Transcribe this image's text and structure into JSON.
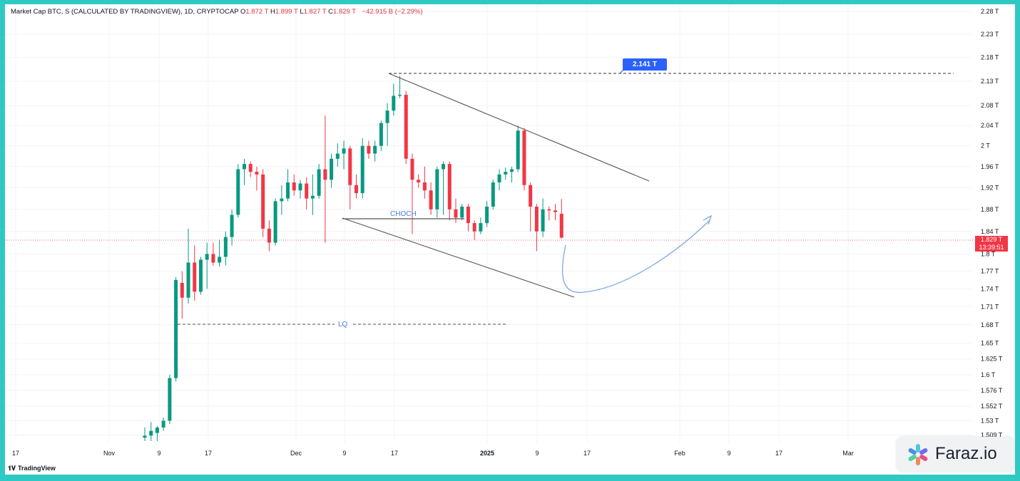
{
  "header": {
    "title": "Market Cap BTC, S (CALCULATED BY TRADINGVIEW), 1D, CRYPTOCAP",
    "o_label": "O",
    "o_value": "1.872 T",
    "h_label": "H",
    "h_value": "1.899 T",
    "l_label": "L",
    "l_value": "1.827 T",
    "c_label": "C",
    "c_value": "1.829 T",
    "change": "−42.915 B (−2.29%)"
  },
  "current_price": {
    "value": "1.829 T",
    "countdown": "13:39:51"
  },
  "target_label": "2.141 T",
  "annotations": {
    "choch": "CHOCH",
    "lq": "LQ"
  },
  "branding": {
    "tradingview": "TradingView",
    "watermark": "Faraz.io"
  },
  "colors": {
    "up": "#089981",
    "down": "#f23645",
    "annotation": "#4b7bd4",
    "arrow": "#7ea8e6"
  },
  "chart_data": {
    "type": "candlestick",
    "y_scale": "log",
    "ylim": [
      1.5,
      2.28
    ],
    "y_tick_labels": [
      "2.28 T",
      "2.23 T",
      "2.18 T",
      "2.13 T",
      "2.08 T",
      "2.04 T",
      "2 T",
      "1.96 T",
      "1.92 T",
      "1.88 T",
      "1.84 T",
      "1.8 T",
      "1.77 T",
      "1.74 T",
      "1.71 T",
      "1.68 T",
      "1.65 T",
      "1.625 T",
      "1.6 T",
      "1.576 T",
      "1.552 T",
      "1.53 T",
      "1.509 T"
    ],
    "x_tick_labels": [
      "17",
      "Nov",
      "9",
      "17",
      "Dec",
      "9",
      "17",
      "2025",
      "9",
      "17",
      "Feb",
      "9",
      "17",
      "Mar"
    ],
    "candles": [
      {
        "o": 1.505,
        "h": 1.52,
        "l": 1.5,
        "c": 1.508
      },
      {
        "o": 1.508,
        "h": 1.528,
        "l": 1.5,
        "c": 1.515
      },
      {
        "o": 1.512,
        "h": 1.522,
        "l": 1.5,
        "c": 1.52
      },
      {
        "o": 1.52,
        "h": 1.535,
        "l": 1.515,
        "c": 1.53
      },
      {
        "o": 1.53,
        "h": 1.6,
        "l": 1.525,
        "c": 1.595
      },
      {
        "o": 1.595,
        "h": 1.76,
        "l": 1.59,
        "c": 1.755
      },
      {
        "o": 1.75,
        "h": 1.77,
        "l": 1.69,
        "c": 1.725
      },
      {
        "o": 1.725,
        "h": 1.845,
        "l": 1.715,
        "c": 1.785
      },
      {
        "o": 1.785,
        "h": 1.815,
        "l": 1.72,
        "c": 1.735
      },
      {
        "o": 1.735,
        "h": 1.795,
        "l": 1.73,
        "c": 1.79
      },
      {
        "o": 1.79,
        "h": 1.82,
        "l": 1.74,
        "c": 1.8
      },
      {
        "o": 1.8,
        "h": 1.82,
        "l": 1.78,
        "c": 1.785
      },
      {
        "o": 1.785,
        "h": 1.825,
        "l": 1.778,
        "c": 1.795
      },
      {
        "o": 1.795,
        "h": 1.84,
        "l": 1.78,
        "c": 1.83
      },
      {
        "o": 1.83,
        "h": 1.88,
        "l": 1.815,
        "c": 1.87
      },
      {
        "o": 1.87,
        "h": 1.965,
        "l": 1.865,
        "c": 1.955
      },
      {
        "o": 1.955,
        "h": 1.975,
        "l": 1.925,
        "c": 1.965
      },
      {
        "o": 1.965,
        "h": 1.97,
        "l": 1.94,
        "c": 1.95
      },
      {
        "o": 1.95,
        "h": 1.96,
        "l": 1.915,
        "c": 1.945
      },
      {
        "o": 1.945,
        "h": 1.955,
        "l": 1.83,
        "c": 1.845
      },
      {
        "o": 1.845,
        "h": 1.86,
        "l": 1.805,
        "c": 1.82
      },
      {
        "o": 1.82,
        "h": 1.9,
        "l": 1.815,
        "c": 1.895
      },
      {
        "o": 1.895,
        "h": 1.925,
        "l": 1.87,
        "c": 1.9
      },
      {
        "o": 1.9,
        "h": 1.955,
        "l": 1.895,
        "c": 1.93
      },
      {
        "o": 1.93,
        "h": 1.945,
        "l": 1.905,
        "c": 1.915
      },
      {
        "o": 1.915,
        "h": 1.935,
        "l": 1.9,
        "c": 1.928
      },
      {
        "o": 1.928,
        "h": 1.94,
        "l": 1.88,
        "c": 1.9
      },
      {
        "o": 1.9,
        "h": 1.945,
        "l": 1.87,
        "c": 1.905
      },
      {
        "o": 1.905,
        "h": 1.965,
        "l": 1.9,
        "c": 1.955
      },
      {
        "o": 1.955,
        "h": 2.06,
        "l": 1.82,
        "c": 1.935
      },
      {
        "o": 1.935,
        "h": 1.985,
        "l": 1.92,
        "c": 1.975
      },
      {
        "o": 1.975,
        "h": 2.005,
        "l": 1.96,
        "c": 1.985
      },
      {
        "o": 1.985,
        "h": 2.01,
        "l": 1.955,
        "c": 1.995
      },
      {
        "o": 1.995,
        "h": 2.0,
        "l": 1.88,
        "c": 1.925
      },
      {
        "o": 1.925,
        "h": 1.945,
        "l": 1.9,
        "c": 1.91
      },
      {
        "o": 1.91,
        "h": 2.015,
        "l": 1.9,
        "c": 2.0
      },
      {
        "o": 2.0,
        "h": 2.01,
        "l": 1.975,
        "c": 1.985
      },
      {
        "o": 1.985,
        "h": 2.01,
        "l": 1.97,
        "c": 2.0
      },
      {
        "o": 2.0,
        "h": 2.05,
        "l": 1.99,
        "c": 2.045
      },
      {
        "o": 2.045,
        "h": 2.085,
        "l": 2.0,
        "c": 2.07
      },
      {
        "o": 2.07,
        "h": 2.125,
        "l": 2.06,
        "c": 2.1
      },
      {
        "o": 2.1,
        "h": 2.141,
        "l": 2.095,
        "c": 2.102
      },
      {
        "o": 2.102,
        "h": 2.11,
        "l": 1.965,
        "c": 1.975
      },
      {
        "o": 1.975,
        "h": 1.985,
        "l": 1.835,
        "c": 1.935
      },
      {
        "o": 1.935,
        "h": 1.945,
        "l": 1.92,
        "c": 1.93
      },
      {
        "o": 1.93,
        "h": 1.96,
        "l": 1.9,
        "c": 1.915
      },
      {
        "o": 1.915,
        "h": 1.93,
        "l": 1.87,
        "c": 1.88
      },
      {
        "o": 1.88,
        "h": 1.96,
        "l": 1.865,
        "c": 1.955
      },
      {
        "o": 1.955,
        "h": 1.97,
        "l": 1.87,
        "c": 1.965
      },
      {
        "o": 1.965,
        "h": 1.97,
        "l": 1.86,
        "c": 1.88
      },
      {
        "o": 1.88,
        "h": 1.9,
        "l": 1.855,
        "c": 1.865
      },
      {
        "o": 1.865,
        "h": 1.89,
        "l": 1.86,
        "c": 1.885
      },
      {
        "o": 1.885,
        "h": 1.89,
        "l": 1.84,
        "c": 1.855
      },
      {
        "o": 1.855,
        "h": 1.86,
        "l": 1.825,
        "c": 1.84
      },
      {
        "o": 1.84,
        "h": 1.865,
        "l": 1.835,
        "c": 1.855
      },
      {
        "o": 1.855,
        "h": 1.895,
        "l": 1.848,
        "c": 1.885
      },
      {
        "o": 1.885,
        "h": 1.935,
        "l": 1.88,
        "c": 1.93
      },
      {
        "o": 1.93,
        "h": 1.955,
        "l": 1.915,
        "c": 1.945
      },
      {
        "o": 1.945,
        "h": 1.958,
        "l": 1.935,
        "c": 1.95
      },
      {
        "o": 1.95,
        "h": 1.96,
        "l": 1.93,
        "c": 1.955
      },
      {
        "o": 1.955,
        "h": 2.04,
        "l": 1.95,
        "c": 2.03
      },
      {
        "o": 2.03,
        "h": 2.035,
        "l": 1.915,
        "c": 1.925
      },
      {
        "o": 1.925,
        "h": 1.93,
        "l": 1.84,
        "c": 1.885
      },
      {
        "o": 1.885,
        "h": 1.89,
        "l": 1.805,
        "c": 1.84
      },
      {
        "o": 1.84,
        "h": 1.9,
        "l": 1.83,
        "c": 1.88
      },
      {
        "o": 1.88,
        "h": 1.885,
        "l": 1.86,
        "c": 1.878
      },
      {
        "o": 1.878,
        "h": 1.89,
        "l": 1.86,
        "c": 1.875
      },
      {
        "o": 1.872,
        "h": 1.899,
        "l": 1.827,
        "c": 1.829
      }
    ]
  }
}
